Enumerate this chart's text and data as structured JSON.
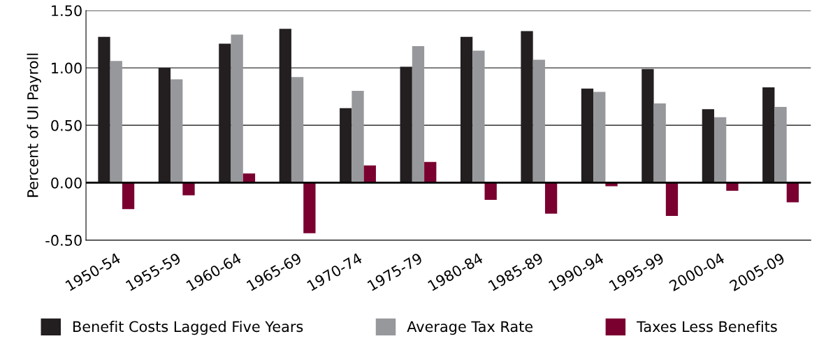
{
  "chart_data": {
    "type": "bar",
    "ylabel": "Percent of UI Payroll",
    "categories": [
      "1950-54",
      "1955-59",
      "1960-64",
      "1965-69",
      "1970-74",
      "1975-79",
      "1980-84",
      "1985-89",
      "1990-94",
      "1995-99",
      "2000-04",
      "2005-09"
    ],
    "series": [
      {
        "name": "Benefit Costs Lagged Five Years",
        "color": "#231f20",
        "values": [
          1.27,
          1.0,
          1.21,
          1.34,
          0.65,
          1.01,
          1.27,
          1.32,
          0.82,
          0.99,
          0.64,
          0.83
        ]
      },
      {
        "name": "Average Tax Rate",
        "color": "#97989b",
        "values": [
          1.06,
          0.9,
          1.29,
          0.92,
          0.8,
          1.19,
          1.15,
          1.07,
          0.79,
          0.69,
          0.57,
          0.66
        ]
      },
      {
        "name": "Taxes Less Benefits",
        "color": "#7a0030",
        "values": [
          -0.23,
          -0.11,
          0.08,
          -0.44,
          0.15,
          0.18,
          -0.15,
          -0.27,
          -0.03,
          -0.29,
          -0.07,
          -0.17
        ]
      }
    ],
    "ylim": [
      -0.5,
      1.5
    ],
    "yticks": [
      {
        "value": -0.5,
        "label": "-0.50"
      },
      {
        "value": 0,
        "label": "0.00"
      },
      {
        "value": 0.5,
        "label": "0.50"
      },
      {
        "value": 1.0,
        "label": "1.00"
      },
      {
        "value": 1.5,
        "label": "1.50"
      }
    ],
    "grid": "y",
    "legend": "bottom"
  }
}
